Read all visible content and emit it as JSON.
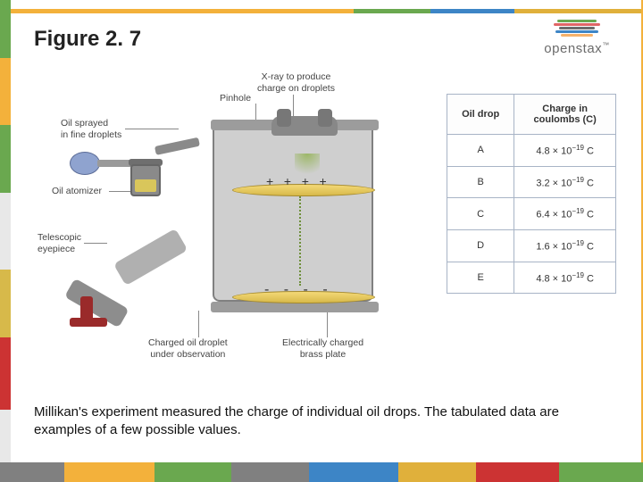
{
  "title": "Figure 2. 7",
  "logo": {
    "text": "openstax",
    "tm": "™",
    "bar_colors": [
      "#6aa84f",
      "#e06666",
      "#6c6c6c",
      "#3d85c6",
      "#f6b26b"
    ]
  },
  "border": {
    "top_colors": [
      "#f3b13b",
      "#f3b13b",
      "#6aa84f",
      "#3d85c6",
      "#e0b03b"
    ],
    "left_colors": [
      "#6aa84f",
      "#f3b13b",
      "#6aa84f",
      "#e8e8e8",
      "#d7b94a",
      "#cc3333",
      "#e8e8e8"
    ],
    "right_color": "#f3b13b",
    "bottom_colors": [
      "#808080",
      "#f3b13b",
      "#6aa84f",
      "#808080",
      "#3d85c6",
      "#e0b03b",
      "#cc3333",
      "#6aa84f"
    ]
  },
  "diagram": {
    "labels": {
      "xray": "X-ray to produce\ncharge on droplets",
      "pinhole": "Pinhole",
      "spray": "Oil sprayed\nin fine droplets",
      "atomizer_lbl": "Oil atomizer",
      "eyepiece_lbl": "Telescopic\neyepiece",
      "droplet_lbl": "Charged oil droplet\nunder observation",
      "plate_lbl": "Electrically charged\nbrass plate"
    },
    "colors": {
      "chamber": "#cfcfcf",
      "chamber_border": "#808080",
      "plate_fill_top": "#f4d977",
      "plate_fill_bot": "#d7b94a",
      "plate_border": "#a58a2e",
      "bulb": "#8fa3cf",
      "mount": "#9a2a2a",
      "droplet": "#6e8f3a"
    }
  },
  "table": {
    "headers": [
      "Oil drop",
      "Charge in\ncoulombs (C)"
    ],
    "rows": [
      {
        "drop": "A",
        "charge_mantissa": "4.8",
        "charge_exp": "−19",
        "unit": "C"
      },
      {
        "drop": "B",
        "charge_mantissa": "3.2",
        "charge_exp": "−19",
        "unit": "C"
      },
      {
        "drop": "C",
        "charge_mantissa": "6.4",
        "charge_exp": "−19",
        "unit": "C"
      },
      {
        "drop": "D",
        "charge_mantissa": "1.6",
        "charge_exp": "−19",
        "unit": "C"
      },
      {
        "drop": "E",
        "charge_mantissa": "4.8",
        "charge_exp": "−19",
        "unit": "C"
      }
    ]
  },
  "caption": "Millikan's experiment measured the charge of individual oil drops. The tabulated data are examples of a few possible values."
}
